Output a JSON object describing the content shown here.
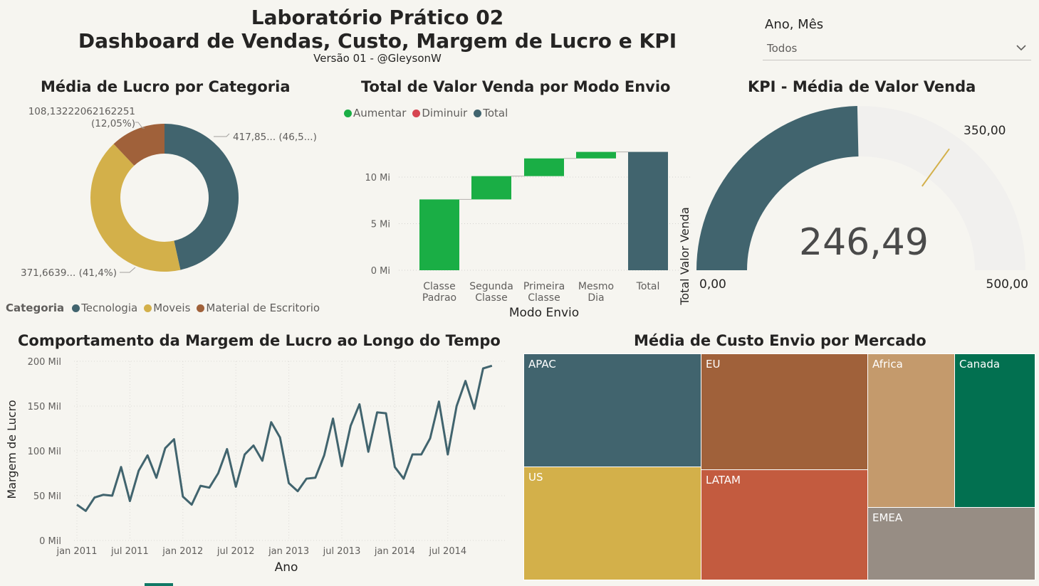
{
  "header": {
    "title_line1": "Laboratório Prático 02",
    "title_line2": "Dashboard de Vendas, Custo, Margem de Lucro e KPI",
    "subtitle": "Versão 01 - @GleysonW"
  },
  "slicer": {
    "label": "Ano, Mês",
    "value": "Todos",
    "icon": "chevron-down-icon"
  },
  "colors": {
    "teal": "#41646e",
    "gold": "#d3b04a",
    "brown": "#a0613a",
    "green": "#1aae45",
    "red": "#d64550",
    "gauge_track": "#f1f0ee",
    "target": "#d3b04a",
    "apac": "#41646e",
    "eu": "#a0613a",
    "africa": "#c49a6c",
    "canada": "#027050",
    "us": "#d3b04a",
    "latam": "#c35b3f",
    "emea": "#978d84"
  },
  "chart_data": [
    {
      "type": "pie",
      "variant": "donut",
      "title": "Média de Lucro por Categoria",
      "legend_title": "Categoria",
      "legend_position": "bottom-left",
      "slices": [
        {
          "name": "Tecnologia",
          "value": 417.85,
          "pct": 46.5,
          "label": "417,85... (46,5...)"
        },
        {
          "name": "Moveis",
          "value": 371.6639,
          "pct": 41.4,
          "label": "371,6639... (41,4%)"
        },
        {
          "name": "Material de Escritorio",
          "value": 108.13222062162251,
          "pct": 12.05,
          "label_value": "108,13222062162251",
          "label_pct": "(12,05%)"
        }
      ]
    },
    {
      "type": "bar",
      "variant": "waterfall",
      "title": "Total de Valor Venda por Modo Envio",
      "xlabel": "Modo Envio",
      "ylabel": "Total Valor Venda",
      "legend": [
        "Aumentar",
        "Diminuir",
        "Total"
      ],
      "legend_position": "top-left",
      "categories": [
        [
          "Classe",
          "Padrao"
        ],
        [
          "Segunda",
          "Classe"
        ],
        [
          "Primeira",
          "Classe"
        ],
        [
          "Mesmo",
          "Dia"
        ],
        [
          "Total"
        ]
      ],
      "values": [
        7.6,
        2.5,
        1.9,
        0.7,
        12.7
      ],
      "kinds": [
        "increase",
        "increase",
        "increase",
        "increase",
        "total"
      ],
      "yticks": [
        "0 Mi",
        "5 Mi",
        "10 Mi"
      ],
      "ylim": [
        0,
        14.5
      ]
    },
    {
      "type": "gauge",
      "title": "KPI - Média de Valor Venda",
      "value": 246.49,
      "value_label": "246,49",
      "min": 0,
      "max": 500,
      "target": 350,
      "min_label": "0,00",
      "max_label": "500,00",
      "target_label": "350,00"
    },
    {
      "type": "line",
      "title": "Comportamento da Margem de Lucro ao Longo do Tempo",
      "xlabel": "Ano",
      "ylabel": "Margem de Lucro",
      "ylim": [
        0,
        200
      ],
      "yticks": [
        "0 Mil",
        "50 Mil",
        "100 Mil",
        "150 Mil",
        "200 Mil"
      ],
      "xticks": [
        "jan 2011",
        "jul 2011",
        "jan 2012",
        "jul 2012",
        "jan 2013",
        "jul 2013",
        "jan 2014",
        "jul 2014"
      ],
      "grid": true,
      "values": [
        40,
        33,
        48,
        51,
        50,
        82,
        44,
        78,
        95,
        70,
        103,
        113,
        49,
        40,
        61,
        59,
        75,
        102,
        60,
        96,
        106,
        89,
        132,
        115,
        64,
        55,
        69,
        70,
        95,
        136,
        83,
        128,
        152,
        99,
        143,
        142,
        82,
        69,
        96,
        96,
        114,
        155,
        96,
        150,
        178,
        147,
        192,
        195
      ]
    },
    {
      "type": "treemap",
      "title": "Média de Custo Envio por Mercado",
      "items": [
        {
          "name": "APAC"
        },
        {
          "name": "US"
        },
        {
          "name": "EU"
        },
        {
          "name": "LATAM"
        },
        {
          "name": "Africa"
        },
        {
          "name": "Canada"
        },
        {
          "name": "EMEA"
        }
      ]
    }
  ]
}
